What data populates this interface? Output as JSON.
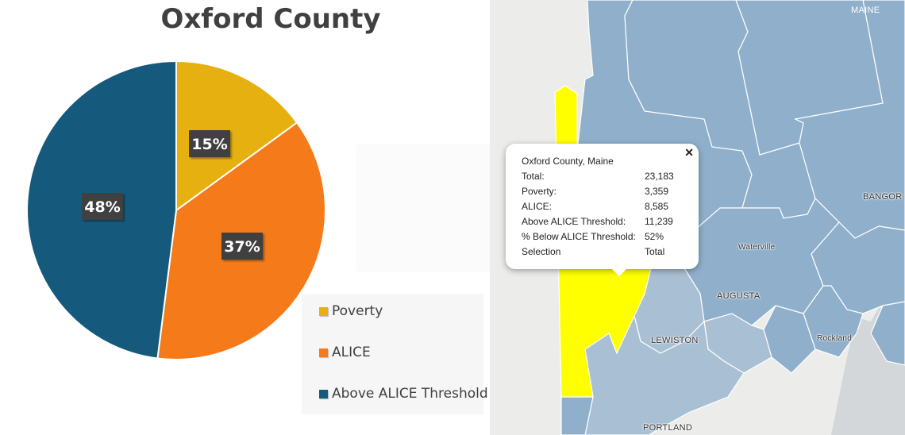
{
  "chart_data": {
    "type": "pie",
    "title": "Oxford County",
    "categories": [
      "Poverty",
      "ALICE",
      "Above ALICE Threshold"
    ],
    "values": [
      15,
      37,
      48
    ],
    "value_labels": [
      "15%",
      "37%",
      "48%"
    ],
    "colors": [
      "#e6b010",
      "#f47a1a",
      "#155a7c"
    ],
    "legend_position": "bottom-right"
  },
  "map": {
    "labels": {
      "maine": "MAINE",
      "bangor": "BANGOR",
      "waterville": "Waterville",
      "augusta": "AUGUSTA",
      "lewiston": "LEWISTON",
      "rockland": "Rockland",
      "portland": "PORTLAND"
    },
    "colors": {
      "highlight": "#ffff00",
      "county": "#8fafcb",
      "county_light": "#a9bfd3",
      "border": "#ffffff",
      "land": "#ececea",
      "water": "#d3d7da"
    },
    "popup": {
      "heading": "Oxford County, Maine",
      "close": "✕",
      "rows": [
        {
          "key": "Total:",
          "value": "23,183"
        },
        {
          "key": "Poverty:",
          "value": "3,359"
        },
        {
          "key": "ALICE:",
          "value": "8,585"
        },
        {
          "key": "Above ALICE Threshold:",
          "value": "11,239"
        },
        {
          "key": "% Below ALICE Threshold:",
          "value": "52%"
        },
        {
          "key": "Selection",
          "value": "Total"
        }
      ]
    }
  }
}
